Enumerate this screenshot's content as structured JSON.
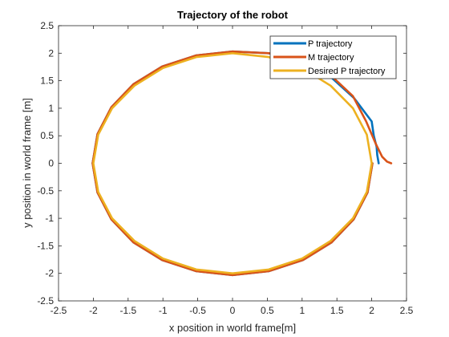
{
  "chart_data": {
    "type": "line",
    "title": "Trajectory of the robot",
    "xlabel": "x position in world frame[m]",
    "ylabel": "y position in world frame [m]",
    "xlim": [
      -2.5,
      2.5
    ],
    "ylim": [
      -2.5,
      2.5
    ],
    "xticks": [
      "-2.5",
      "-2",
      "-1.5",
      "-1",
      "-0.5",
      "0",
      "0.5",
      "1",
      "1.5",
      "2",
      "2.5"
    ],
    "yticks": [
      "-2.5",
      "-2",
      "-1.5",
      "-1",
      "-0.5",
      "0",
      "0.5",
      "1",
      "1.5",
      "2",
      "2.5"
    ],
    "grid": false,
    "legend_position": "top-right",
    "series": [
      {
        "name": "P trajectory",
        "color": "#0072BD",
        "x": [
          2.1,
          2.08,
          2.07,
          2.03,
          2.0,
          1.75,
          1.41,
          1.0,
          0.52,
          0.0,
          -0.52,
          -1.01,
          -1.42,
          -1.74,
          -1.94,
          -2.01,
          -1.94,
          -1.74,
          -1.42,
          -1.01,
          -0.52,
          0.0,
          0.52,
          1.01,
          1.42,
          1.74,
          1.94,
          2.01
        ],
        "y": [
          0.0,
          0.15,
          0.3,
          0.5,
          0.76,
          1.18,
          1.57,
          1.86,
          2.0,
          2.03,
          1.96,
          1.76,
          1.44,
          1.02,
          0.53,
          0.0,
          -0.53,
          -1.02,
          -1.44,
          -1.76,
          -1.96,
          -2.03,
          -1.96,
          -1.76,
          -1.44,
          -1.02,
          -0.53,
          0.0
        ]
      },
      {
        "name": "M trajectory",
        "color": "#D95319",
        "x": [
          2.28,
          2.22,
          2.15,
          2.06,
          1.92,
          1.73,
          1.41,
          1.0,
          0.52,
          0.0,
          -0.52,
          -1.01,
          -1.42,
          -1.74,
          -1.94,
          -2.01,
          -1.94,
          -1.74,
          -1.42,
          -1.01,
          -0.52,
          0.0,
          0.52,
          1.01,
          1.42,
          1.74,
          1.94,
          2.01
        ],
        "y": [
          0.0,
          0.03,
          0.12,
          0.35,
          0.76,
          1.22,
          1.6,
          1.87,
          2.0,
          2.03,
          1.96,
          1.76,
          1.44,
          1.02,
          0.53,
          0.0,
          -0.53,
          -1.02,
          -1.44,
          -1.76,
          -1.96,
          -2.03,
          -1.96,
          -1.76,
          -1.44,
          -1.02,
          -0.53,
          0.0
        ]
      },
      {
        "name": "Desired P trajectory",
        "color": "#EDB120",
        "x": [
          2.0,
          1.93,
          1.73,
          1.41,
          1.0,
          0.52,
          0.0,
          -0.52,
          -1.0,
          -1.41,
          -1.73,
          -1.93,
          -2.0,
          -1.93,
          -1.73,
          -1.41,
          -1.0,
          -0.52,
          0.0,
          0.52,
          1.0,
          1.41,
          1.73,
          1.93,
          2.0
        ],
        "y": [
          0.0,
          0.52,
          1.0,
          1.41,
          1.73,
          1.93,
          2.0,
          1.93,
          1.73,
          1.41,
          1.0,
          0.52,
          0.0,
          -0.52,
          -1.0,
          -1.41,
          -1.73,
          -1.93,
          -2.0,
          -1.93,
          -1.73,
          -1.41,
          -1.0,
          -0.52,
          0.0
        ]
      }
    ]
  }
}
